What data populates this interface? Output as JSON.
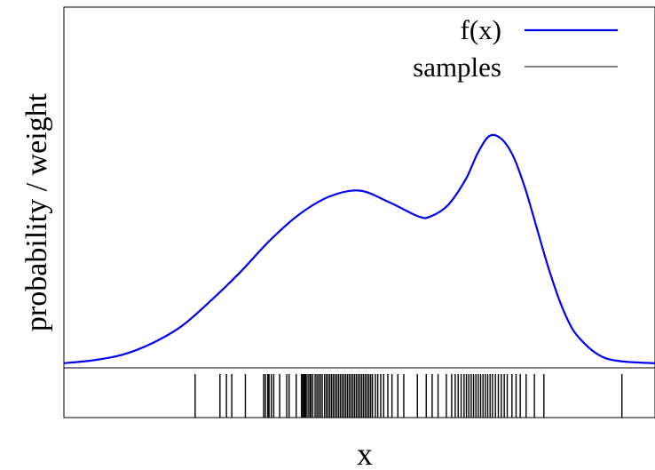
{
  "chart_data": {
    "type": "line",
    "xlabel": "x",
    "ylabel": "probability / weight",
    "legend_position": "top-right",
    "grid": false,
    "xlim": [
      0,
      1
    ],
    "ylim": [
      0,
      1
    ],
    "colors": {
      "curve": "#0000ee",
      "samples": "#000000",
      "frame": "#000000"
    },
    "series": [
      {
        "name": "f(x)",
        "kind": "curve",
        "x": [
          0.0,
          0.05,
          0.1,
          0.15,
          0.2,
          0.25,
          0.3,
          0.35,
          0.4,
          0.45,
          0.5,
          0.55,
          0.6,
          0.62,
          0.65,
          0.68,
          0.7,
          0.72,
          0.74,
          0.76,
          0.78,
          0.8,
          0.82,
          0.84,
          0.86,
          0.88,
          0.9,
          0.92,
          0.95,
          1.0
        ],
        "y": [
          0.01,
          0.02,
          0.04,
          0.08,
          0.14,
          0.23,
          0.33,
          0.44,
          0.53,
          0.59,
          0.61,
          0.57,
          0.52,
          0.52,
          0.56,
          0.65,
          0.74,
          0.8,
          0.79,
          0.73,
          0.62,
          0.48,
          0.34,
          0.22,
          0.13,
          0.08,
          0.045,
          0.025,
          0.015,
          0.01
        ]
      },
      {
        "name": "samples",
        "kind": "rug",
        "x": [
          0.222,
          0.264,
          0.275,
          0.284,
          0.307,
          0.338,
          0.341,
          0.345,
          0.347,
          0.351,
          0.355,
          0.365,
          0.377,
          0.381,
          0.393,
          0.402,
          0.404,
          0.406,
          0.408,
          0.41,
          0.413,
          0.416,
          0.418,
          0.421,
          0.425,
          0.428,
          0.431,
          0.434,
          0.437,
          0.441,
          0.444,
          0.447,
          0.45,
          0.453,
          0.456,
          0.459,
          0.462,
          0.465,
          0.468,
          0.471,
          0.474,
          0.477,
          0.48,
          0.483,
          0.486,
          0.489,
          0.492,
          0.495,
          0.498,
          0.501,
          0.504,
          0.507,
          0.51,
          0.513,
          0.516,
          0.519,
          0.522,
          0.527,
          0.531,
          0.536,
          0.541,
          0.548,
          0.555,
          0.565,
          0.575,
          0.598,
          0.613,
          0.623,
          0.633,
          0.647,
          0.656,
          0.662,
          0.667,
          0.672,
          0.677,
          0.681,
          0.685,
          0.689,
          0.693,
          0.697,
          0.701,
          0.705,
          0.709,
          0.713,
          0.717,
          0.721,
          0.725,
          0.73,
          0.735,
          0.74,
          0.745,
          0.75,
          0.758,
          0.765,
          0.772,
          0.782,
          0.796,
          0.812,
          0.944
        ]
      }
    ]
  }
}
